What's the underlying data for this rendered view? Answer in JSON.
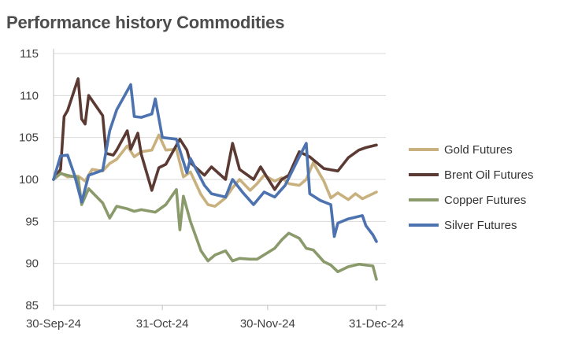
{
  "chart_data": {
    "type": "line",
    "title": "Performance history Commodities",
    "xlabel": "",
    "ylabel": "",
    "x_start": "2024-09-30",
    "x_end": "2024-12-31",
    "xticks": [
      "30-Sep-24",
      "31-Oct-24",
      "30-Nov-24",
      "31-Dec-24"
    ],
    "ylim": [
      85,
      115
    ],
    "yticks": [
      85,
      90,
      95,
      100,
      105,
      110,
      115
    ],
    "grid": true,
    "legend_position": "right",
    "series": [
      {
        "name": "Gold Futures",
        "color": "#c9b17f",
        "x": [
          "2024-09-30",
          "2024-10-02",
          "2024-10-04",
          "2024-10-07",
          "2024-10-09",
          "2024-10-11",
          "2024-10-14",
          "2024-10-16",
          "2024-10-18",
          "2024-10-21",
          "2024-10-23",
          "2024-10-25",
          "2024-10-28",
          "2024-10-30",
          "2024-11-01",
          "2024-11-04",
          "2024-11-06",
          "2024-11-08",
          "2024-11-11",
          "2024-11-13",
          "2024-11-15",
          "2024-11-18",
          "2024-11-20",
          "2024-11-22",
          "2024-11-25",
          "2024-11-27",
          "2024-11-29",
          "2024-12-02",
          "2024-12-04",
          "2024-12-06",
          "2024-12-09",
          "2024-12-11",
          "2024-12-13",
          "2024-12-16",
          "2024-12-18",
          "2024-12-20",
          "2024-12-23",
          "2024-12-25",
          "2024-12-27",
          "2024-12-31"
        ],
        "values": [
          100.0,
          100.8,
          100.3,
          100.4,
          99.8,
          101.2,
          101.0,
          101.9,
          102.4,
          104.0,
          102.7,
          103.3,
          103.5,
          105.3,
          103.5,
          103.6,
          100.3,
          100.9,
          98.2,
          97.0,
          96.8,
          97.8,
          99.0,
          100.0,
          98.7,
          99.5,
          100.5,
          99.8,
          100.2,
          99.5,
          99.3,
          100.0,
          102.0,
          99.8,
          97.8,
          98.4,
          97.6,
          98.3,
          97.7,
          98.5
        ]
      },
      {
        "name": "Brent Oil Futures",
        "color": "#5b3a33",
        "x": [
          "2024-09-30",
          "2024-10-02",
          "2024-10-03",
          "2024-10-04",
          "2024-10-07",
          "2024-10-08",
          "2024-10-09",
          "2024-10-10",
          "2024-10-14",
          "2024-10-15",
          "2024-10-17",
          "2024-10-18",
          "2024-10-21",
          "2024-10-22",
          "2024-10-24",
          "2024-10-25",
          "2024-10-28",
          "2024-10-30",
          "2024-11-01",
          "2024-11-05",
          "2024-11-07",
          "2024-11-08",
          "2024-11-12",
          "2024-11-14",
          "2024-11-18",
          "2024-11-20",
          "2024-11-22",
          "2024-11-26",
          "2024-11-28",
          "2024-12-02",
          "2024-12-04",
          "2024-12-06",
          "2024-12-09",
          "2024-12-12",
          "2024-12-16",
          "2024-12-20",
          "2024-12-23",
          "2024-12-26",
          "2024-12-28",
          "2024-12-31"
        ],
        "values": [
          100.0,
          101.2,
          107.5,
          108.2,
          112.0,
          107.2,
          106.6,
          110.0,
          107.6,
          103.1,
          102.9,
          103.5,
          105.8,
          103.6,
          105.5,
          103.0,
          98.7,
          101.4,
          101.8,
          104.8,
          103.5,
          102.0,
          100.5,
          101.5,
          100.0,
          104.3,
          101.2,
          100.0,
          101.5,
          98.8,
          100.0,
          100.5,
          103.3,
          102.7,
          101.3,
          101.0,
          102.6,
          103.5,
          103.8,
          104.1
        ]
      },
      {
        "name": "Copper Futures",
        "color": "#8a9a6b",
        "x": [
          "2024-09-30",
          "2024-10-02",
          "2024-10-04",
          "2024-10-07",
          "2024-10-08",
          "2024-10-10",
          "2024-10-14",
          "2024-10-16",
          "2024-10-18",
          "2024-10-21",
          "2024-10-23",
          "2024-10-25",
          "2024-10-29",
          "2024-11-01",
          "2024-11-04",
          "2024-11-05",
          "2024-11-06",
          "2024-11-08",
          "2024-11-11",
          "2024-11-13",
          "2024-11-15",
          "2024-11-18",
          "2024-11-20",
          "2024-11-22",
          "2024-11-25",
          "2024-11-27",
          "2024-12-02",
          "2024-12-04",
          "2024-12-06",
          "2024-12-09",
          "2024-12-11",
          "2024-12-13",
          "2024-12-16",
          "2024-12-18",
          "2024-12-20",
          "2024-12-23",
          "2024-12-26",
          "2024-12-28",
          "2024-12-30",
          "2024-12-31"
        ],
        "values": [
          100.0,
          100.7,
          100.5,
          100.2,
          97.0,
          98.9,
          97.2,
          95.4,
          96.8,
          96.5,
          96.2,
          96.4,
          96.1,
          97.0,
          98.8,
          94.0,
          98.0,
          95.0,
          91.5,
          90.3,
          91.0,
          91.5,
          90.3,
          90.6,
          90.5,
          90.5,
          91.8,
          92.8,
          93.6,
          93.0,
          91.8,
          91.6,
          90.2,
          89.8,
          89.0,
          89.6,
          89.9,
          89.8,
          89.7,
          88.1
        ]
      },
      {
        "name": "Silver Futures",
        "color": "#4c72b0",
        "x": [
          "2024-09-30",
          "2024-10-02",
          "2024-10-04",
          "2024-10-06",
          "2024-10-08",
          "2024-10-10",
          "2024-10-14",
          "2024-10-16",
          "2024-10-18",
          "2024-10-22",
          "2024-10-23",
          "2024-10-25",
          "2024-10-28",
          "2024-10-29",
          "2024-10-31",
          "2024-11-04",
          "2024-11-07",
          "2024-11-08",
          "2024-11-12",
          "2024-11-14",
          "2024-11-18",
          "2024-11-20",
          "2024-11-23",
          "2024-11-26",
          "2024-11-29",
          "2024-12-02",
          "2024-12-05",
          "2024-12-09",
          "2024-12-11",
          "2024-12-12",
          "2024-12-15",
          "2024-12-18",
          "2024-12-19",
          "2024-12-20",
          "2024-12-23",
          "2024-12-25",
          "2024-12-27",
          "2024-12-28",
          "2024-12-30",
          "2024-12-31"
        ],
        "values": [
          100.0,
          102.8,
          102.9,
          100.5,
          97.3,
          100.5,
          101.1,
          105.8,
          108.3,
          111.3,
          107.5,
          107.4,
          107.8,
          109.6,
          105.0,
          104.8,
          100.8,
          102.5,
          99.3,
          98.3,
          97.9,
          100.0,
          98.4,
          97.0,
          98.5,
          97.9,
          99.3,
          102.7,
          104.3,
          98.3,
          97.5,
          97.0,
          93.2,
          94.8,
          95.3,
          95.5,
          95.7,
          94.5,
          93.4,
          92.6
        ]
      }
    ]
  }
}
